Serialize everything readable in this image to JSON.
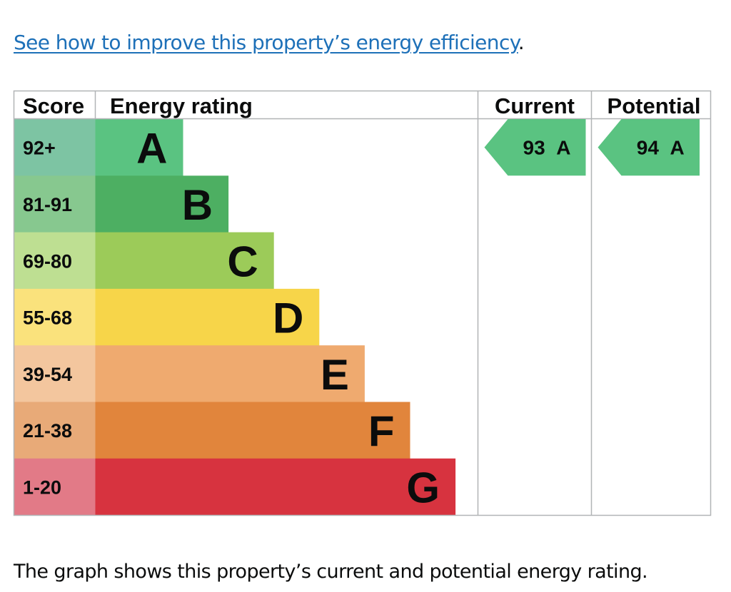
{
  "improve_link": {
    "text": "See how to improve this property’s energy efficiency",
    "trailing": "."
  },
  "caption": "The graph shows this property’s current and potential energy rating.",
  "chart_data": {
    "type": "table",
    "headers": {
      "score": "Score",
      "rating": "Energy rating",
      "current": "Current",
      "potential": "Potential"
    },
    "bands": [
      {
        "letter": "A",
        "range": "92+",
        "color": "#5ac381",
        "score_color": "#7dc4a3"
      },
      {
        "letter": "B",
        "range": "81-91",
        "color": "#4daf62",
        "score_color": "#87c88f"
      },
      {
        "letter": "C",
        "range": "69-80",
        "color": "#9ccb59",
        "score_color": "#bedf92"
      },
      {
        "letter": "D",
        "range": "55-68",
        "color": "#f7d549",
        "score_color": "#fae27c"
      },
      {
        "letter": "E",
        "range": "39-54",
        "color": "#efaa6f",
        "score_color": "#f3c69e"
      },
      {
        "letter": "F",
        "range": "21-38",
        "color": "#e1853c",
        "score_color": "#e8aa78"
      },
      {
        "letter": "G",
        "range": "1-20",
        "color": "#d7333f",
        "score_color": "#e27a87"
      }
    ],
    "current": {
      "value": 93,
      "letter": "A",
      "color": "#5ac381"
    },
    "potential": {
      "value": 94,
      "letter": "A",
      "color": "#5ac381"
    }
  }
}
